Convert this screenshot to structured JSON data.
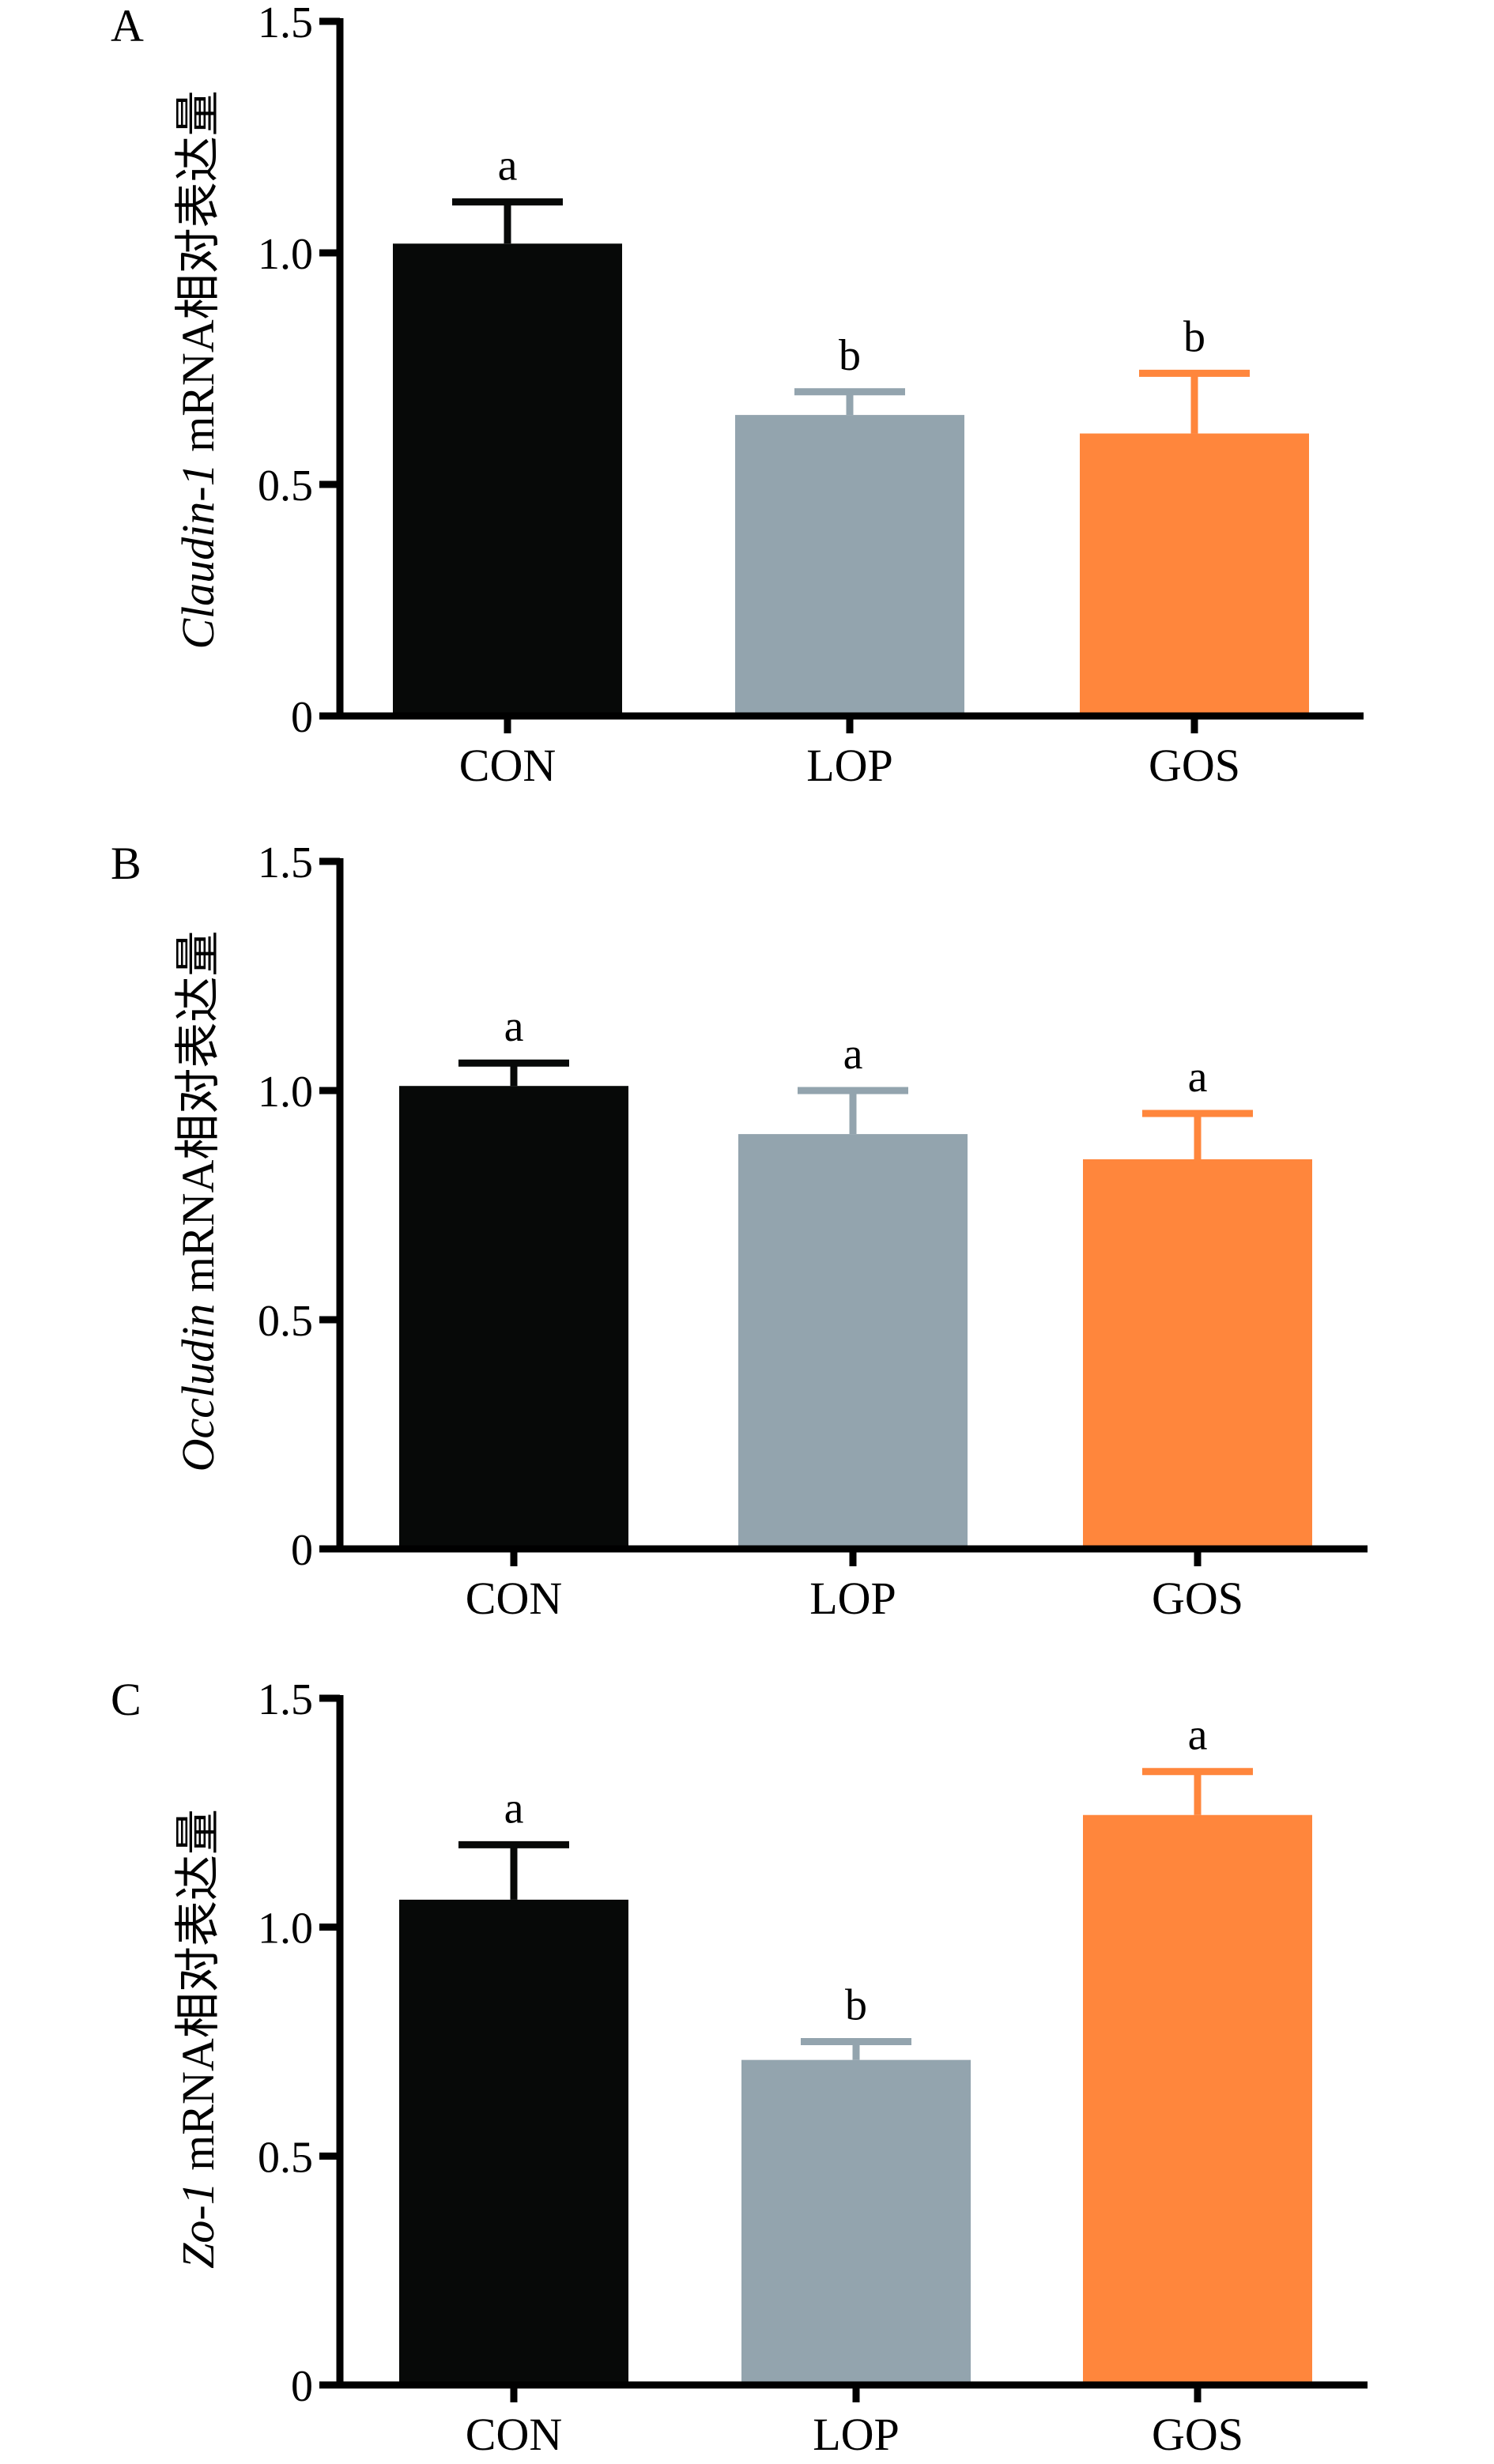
{
  "chart_data": [
    {
      "type": "bar",
      "panel": "A",
      "ylabel_gene": "Claudin-1",
      "ylabel_rest": " mRNA相对表达量",
      "categories": [
        "CON",
        "LOP",
        "GOS"
      ],
      "values": [
        1.02,
        0.65,
        0.61
      ],
      "error_upper": [
        1.11,
        0.7,
        0.74
      ],
      "significance": [
        "a",
        "b",
        "b"
      ],
      "colors": [
        "#070908",
        "#93a4ae",
        "#ff863c"
      ],
      "yticks": [
        "0",
        "0.5",
        "1.0",
        "1.5"
      ],
      "ytick_values": [
        0,
        0.5,
        1.0,
        1.5
      ],
      "ylim": [
        0,
        1.5
      ],
      "xlabel": "",
      "grid": false
    },
    {
      "type": "bar",
      "panel": "B",
      "ylabel_gene": "Occludin",
      "ylabel_rest": " mRNA相对表达量",
      "categories": [
        "CON",
        "LOP",
        "GOS"
      ],
      "values": [
        1.01,
        0.905,
        0.85
      ],
      "error_upper": [
        1.06,
        1.0,
        0.95
      ],
      "significance": [
        "a",
        "a",
        "a"
      ],
      "colors": [
        "#070908",
        "#93a4ae",
        "#ff863c"
      ],
      "yticks": [
        "0",
        "0.5",
        "1.0",
        "1.5"
      ],
      "ytick_values": [
        0,
        0.5,
        1.0,
        1.5
      ],
      "ylim": [
        0,
        1.5
      ],
      "xlabel": "",
      "grid": false
    },
    {
      "type": "bar",
      "panel": "C",
      "ylabel_gene": "Zo-1",
      "ylabel_rest": " mRNA相对表达量",
      "categories": [
        "CON",
        "LOP",
        "GOS"
      ],
      "values": [
        1.06,
        0.71,
        1.245
      ],
      "error_upper": [
        1.18,
        0.75,
        1.34
      ],
      "significance": [
        "a",
        "b",
        "a"
      ],
      "colors": [
        "#070908",
        "#93a4ae",
        "#ff863c"
      ],
      "yticks": [
        "0",
        "0.5",
        "1.0",
        "1.5"
      ],
      "ytick_values": [
        0,
        0.5,
        1.0,
        1.5
      ],
      "ylim": [
        0,
        1.5
      ],
      "xlabel": "",
      "grid": false
    }
  ]
}
